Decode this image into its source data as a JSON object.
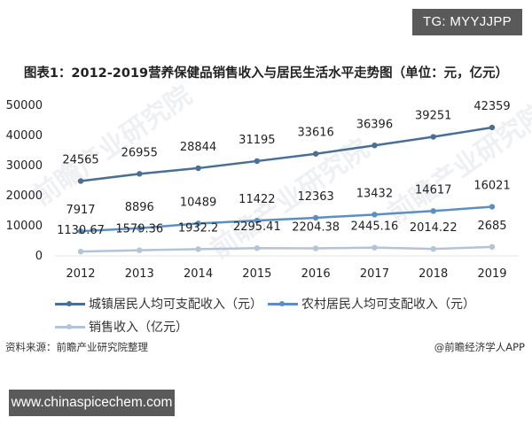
{
  "badges": {
    "top_right": "TG: MYYJJPP",
    "bottom_left": "www.chinaspicechem.com"
  },
  "title": "图表1：2012-2019营养保健品销售收入与居民生活水平走势图（单位：元，亿元）",
  "source": "资料来源：前瞻产业研究院整理",
  "credit": "@前瞻经济学人APP",
  "watermark": "前瞻产业研究院",
  "colors": {
    "urban": "#4a6f96",
    "rural": "#5b8fc3",
    "sales": "#b3c3d8",
    "axis_text": "#222222",
    "badge_bg": "#5a5a5a"
  },
  "chart_data": {
    "type": "line",
    "title": "图表1：2012-2019营养保健品销售收入与居民生活水平走势图（单位：元，亿元）",
    "xlabel": "",
    "ylabel": "",
    "categories": [
      "2012",
      "2013",
      "2014",
      "2015",
      "2016",
      "2017",
      "2018",
      "2019"
    ],
    "y_ticks": [
      "50000",
      "40000",
      "30000",
      "20000",
      "10000",
      "0"
    ],
    "ylim": [
      0,
      50000
    ],
    "grid": false,
    "legend_position": "bottom",
    "series": [
      {
        "name": "城镇居民人均可支配收入（元）",
        "values": [
          24565,
          26955,
          28844,
          31195,
          33616,
          36396,
          39251,
          42359
        ],
        "labels": [
          "24565",
          "26955",
          "28844",
          "31195",
          "33616",
          "36396",
          "39251",
          "42359"
        ]
      },
      {
        "name": "农村居民人均可支配收入（元）",
        "values": [
          7917,
          8896,
          10489,
          11422,
          12363,
          13432,
          14617,
          16021
        ],
        "labels": [
          "7917",
          "8896",
          "10489",
          "11422",
          "12363",
          "13432",
          "14617",
          "16021"
        ]
      },
      {
        "name": "销售收入（亿元）",
        "values": [
          1130.67,
          1579.36,
          1932.2,
          2295.41,
          2204.38,
          2445.16,
          2014.22,
          2685
        ],
        "labels": [
          "1130.67",
          "1579.36",
          "1932.2",
          "2295.41",
          "2204.38",
          "2445.16",
          "2014.22",
          "2685"
        ]
      }
    ]
  }
}
